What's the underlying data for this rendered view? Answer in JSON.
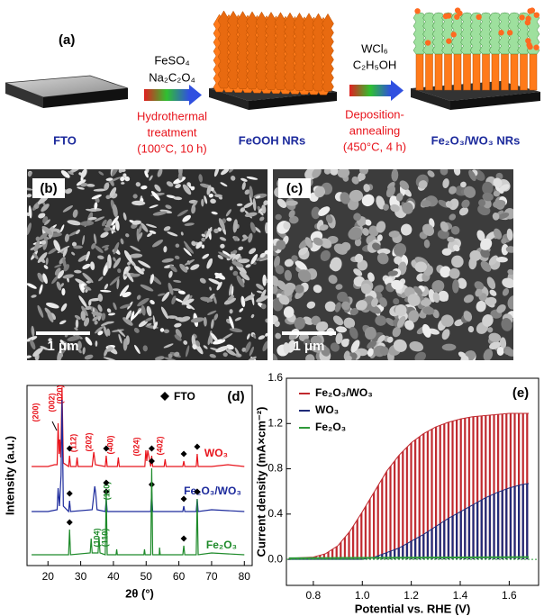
{
  "panel_a": {
    "label": "(a)",
    "fto": "FTO",
    "reagents_1": [
      "FeSO₄",
      "Na₂C₂O₄"
    ],
    "step_1": [
      "Hydrothermal",
      "treatment",
      "(100°C, 10 h)"
    ],
    "feooh": "FeOOH NRs",
    "reagents_2": [
      "WCl₆",
      "C₂H₅OH"
    ],
    "step_2": [
      "Deposition-",
      "annealing",
      "(450°C, 4 h)"
    ],
    "product": "Fe₂O₃/WO₃ NRs"
  },
  "panel_b": {
    "label": "(b)",
    "scale_bar": "1 μm"
  },
  "panel_c": {
    "label": "(c)",
    "scale_bar": "1 μm"
  },
  "chart_data": [
    {
      "type": "line",
      "panel_label": "(d)",
      "xlabel": "2θ (°)",
      "ylabel": "Intensity (a.u.)",
      "xlim": [
        13.6,
        82.4
      ],
      "ylim": [
        0,
        100
      ],
      "xticks": [
        20,
        30,
        40,
        50,
        60,
        70,
        80
      ],
      "fto_marker": {
        "label": "FTO",
        "x": [
          26.6,
          37.8,
          51.7,
          61.5,
          65.6
        ]
      },
      "series": [
        {
          "name": "WO₃",
          "color": "#e8141c",
          "x": [
            15,
            20,
            22,
            22.8,
            23.1,
            23.4,
            23.6,
            23.9,
            24.3,
            24.7,
            26.3,
            26.6,
            26.9,
            28.6,
            28.9,
            29.2,
            33.5,
            34,
            34.5,
            37.5,
            37.8,
            38.1,
            41.2,
            41.5,
            41.8,
            49.6,
            49.9,
            50.2,
            50.5,
            51.4,
            51.7,
            52,
            55.5,
            55.8,
            56.1,
            61.2,
            61.5,
            61.8,
            65.3,
            65.6,
            65.9,
            70,
            75,
            80
          ],
          "values": [
            55,
            55,
            56,
            56,
            79,
            62,
            70,
            60,
            99,
            57,
            55,
            61,
            55,
            55,
            60,
            55,
            55,
            63,
            56,
            55,
            61,
            55,
            55,
            60,
            55,
            55,
            64,
            58,
            64,
            55,
            61,
            55,
            55,
            59,
            55,
            55,
            58,
            55,
            55,
            62,
            55,
            55,
            56,
            55
          ],
          "peak_labels": [
            "(200)",
            "(002)",
            "(020)",
            "(112)",
            "(202)",
            "(400)",
            "(024)",
            "(402)"
          ]
        },
        {
          "name": "Fe₂O₃/WO₃",
          "color": "#1c2a9c",
          "x": [
            15,
            20,
            22.8,
            23.1,
            23.5,
            24,
            24.3,
            24.7,
            26.3,
            26.6,
            26.9,
            33.5,
            34,
            34.3,
            34.6,
            35,
            37.5,
            37.8,
            38.1,
            51.4,
            51.7,
            52,
            61.2,
            61.5,
            61.8,
            65.3,
            65.6,
            65.9,
            70,
            80
          ],
          "values": [
            30,
            30,
            31,
            43,
            33,
            50,
            92,
            33,
            30,
            36,
            30,
            31,
            39,
            44,
            40,
            31,
            30,
            37,
            30,
            30,
            41,
            30,
            30,
            33,
            30,
            30,
            37,
            30,
            31,
            30
          ],
          "peak_labels": [
            "(110)"
          ]
        },
        {
          "name": "Fe₂O₃",
          "color": "#1e8a2a",
          "x": [
            15,
            20,
            26.3,
            26.6,
            26.9,
            32.9,
            33.2,
            33.5,
            35.3,
            35.6,
            35.9,
            37.5,
            37.8,
            38.1,
            40.8,
            41,
            41.2,
            49.3,
            49.5,
            49.7,
            51.4,
            51.7,
            52,
            54,
            54.1,
            54.3,
            61.2,
            61.5,
            61.8,
            65.3,
            65.6,
            65.9,
            70,
            80
          ],
          "values": [
            6,
            6,
            6,
            20,
            6,
            7,
            15,
            7,
            7,
            16,
            7,
            6,
            42,
            6,
            6,
            9,
            6,
            6,
            9,
            6,
            6,
            54,
            6,
            6,
            10,
            6,
            6,
            11,
            6,
            6,
            37,
            6,
            7,
            6
          ],
          "peak_labels": [
            "(104)",
            "(110)"
          ]
        }
      ]
    },
    {
      "type": "line",
      "panel_label": "(e)",
      "xlabel": "Potential vs. RHE (V)",
      "ylabel": "Current density (mA×cm⁻²)",
      "xlim": [
        0.69,
        1.72
      ],
      "ylim": [
        -0.23,
        1.6
      ],
      "xticks": [
        0.8,
        {
          "value": 1,
          "label": "1.0"
        },
        1.2,
        1.4,
        1.6
      ],
      "yticks": [
        {
          "value": 0,
          "label": "0.0"
        },
        0.4,
        0.8,
        1.2,
        1.6
      ],
      "series": [
        {
          "name": "Fe₂O₃/WO₃",
          "color": "#c0282e",
          "chopped": true,
          "x": [
            0.7,
            0.8,
            0.85,
            0.9,
            0.95,
            1.0,
            1.05,
            1.1,
            1.15,
            1.2,
            1.25,
            1.3,
            1.35,
            1.4,
            1.45,
            1.5,
            1.55,
            1.6,
            1.65,
            1.68
          ],
          "values": [
            0.01,
            0.02,
            0.05,
            0.12,
            0.25,
            0.42,
            0.6,
            0.78,
            0.92,
            1.03,
            1.11,
            1.17,
            1.21,
            1.24,
            1.26,
            1.27,
            1.28,
            1.29,
            1.29,
            1.29
          ]
        },
        {
          "name": "WO₃",
          "color": "#1f2a78",
          "chopped": true,
          "x": [
            0.7,
            1.0,
            1.05,
            1.1,
            1.15,
            1.2,
            1.25,
            1.3,
            1.35,
            1.4,
            1.45,
            1.5,
            1.55,
            1.6,
            1.65,
            1.68
          ],
          "values": [
            0,
            0,
            0.02,
            0.06,
            0.1,
            0.16,
            0.22,
            0.29,
            0.36,
            0.42,
            0.48,
            0.54,
            0.59,
            0.63,
            0.66,
            0.67
          ]
        },
        {
          "name": "Fe₂O₃",
          "color": "#2f9a3a",
          "chopped": false,
          "x": [
            0.7,
            1.68
          ],
          "values": [
            0.01,
            0.02
          ]
        }
      ]
    }
  ]
}
